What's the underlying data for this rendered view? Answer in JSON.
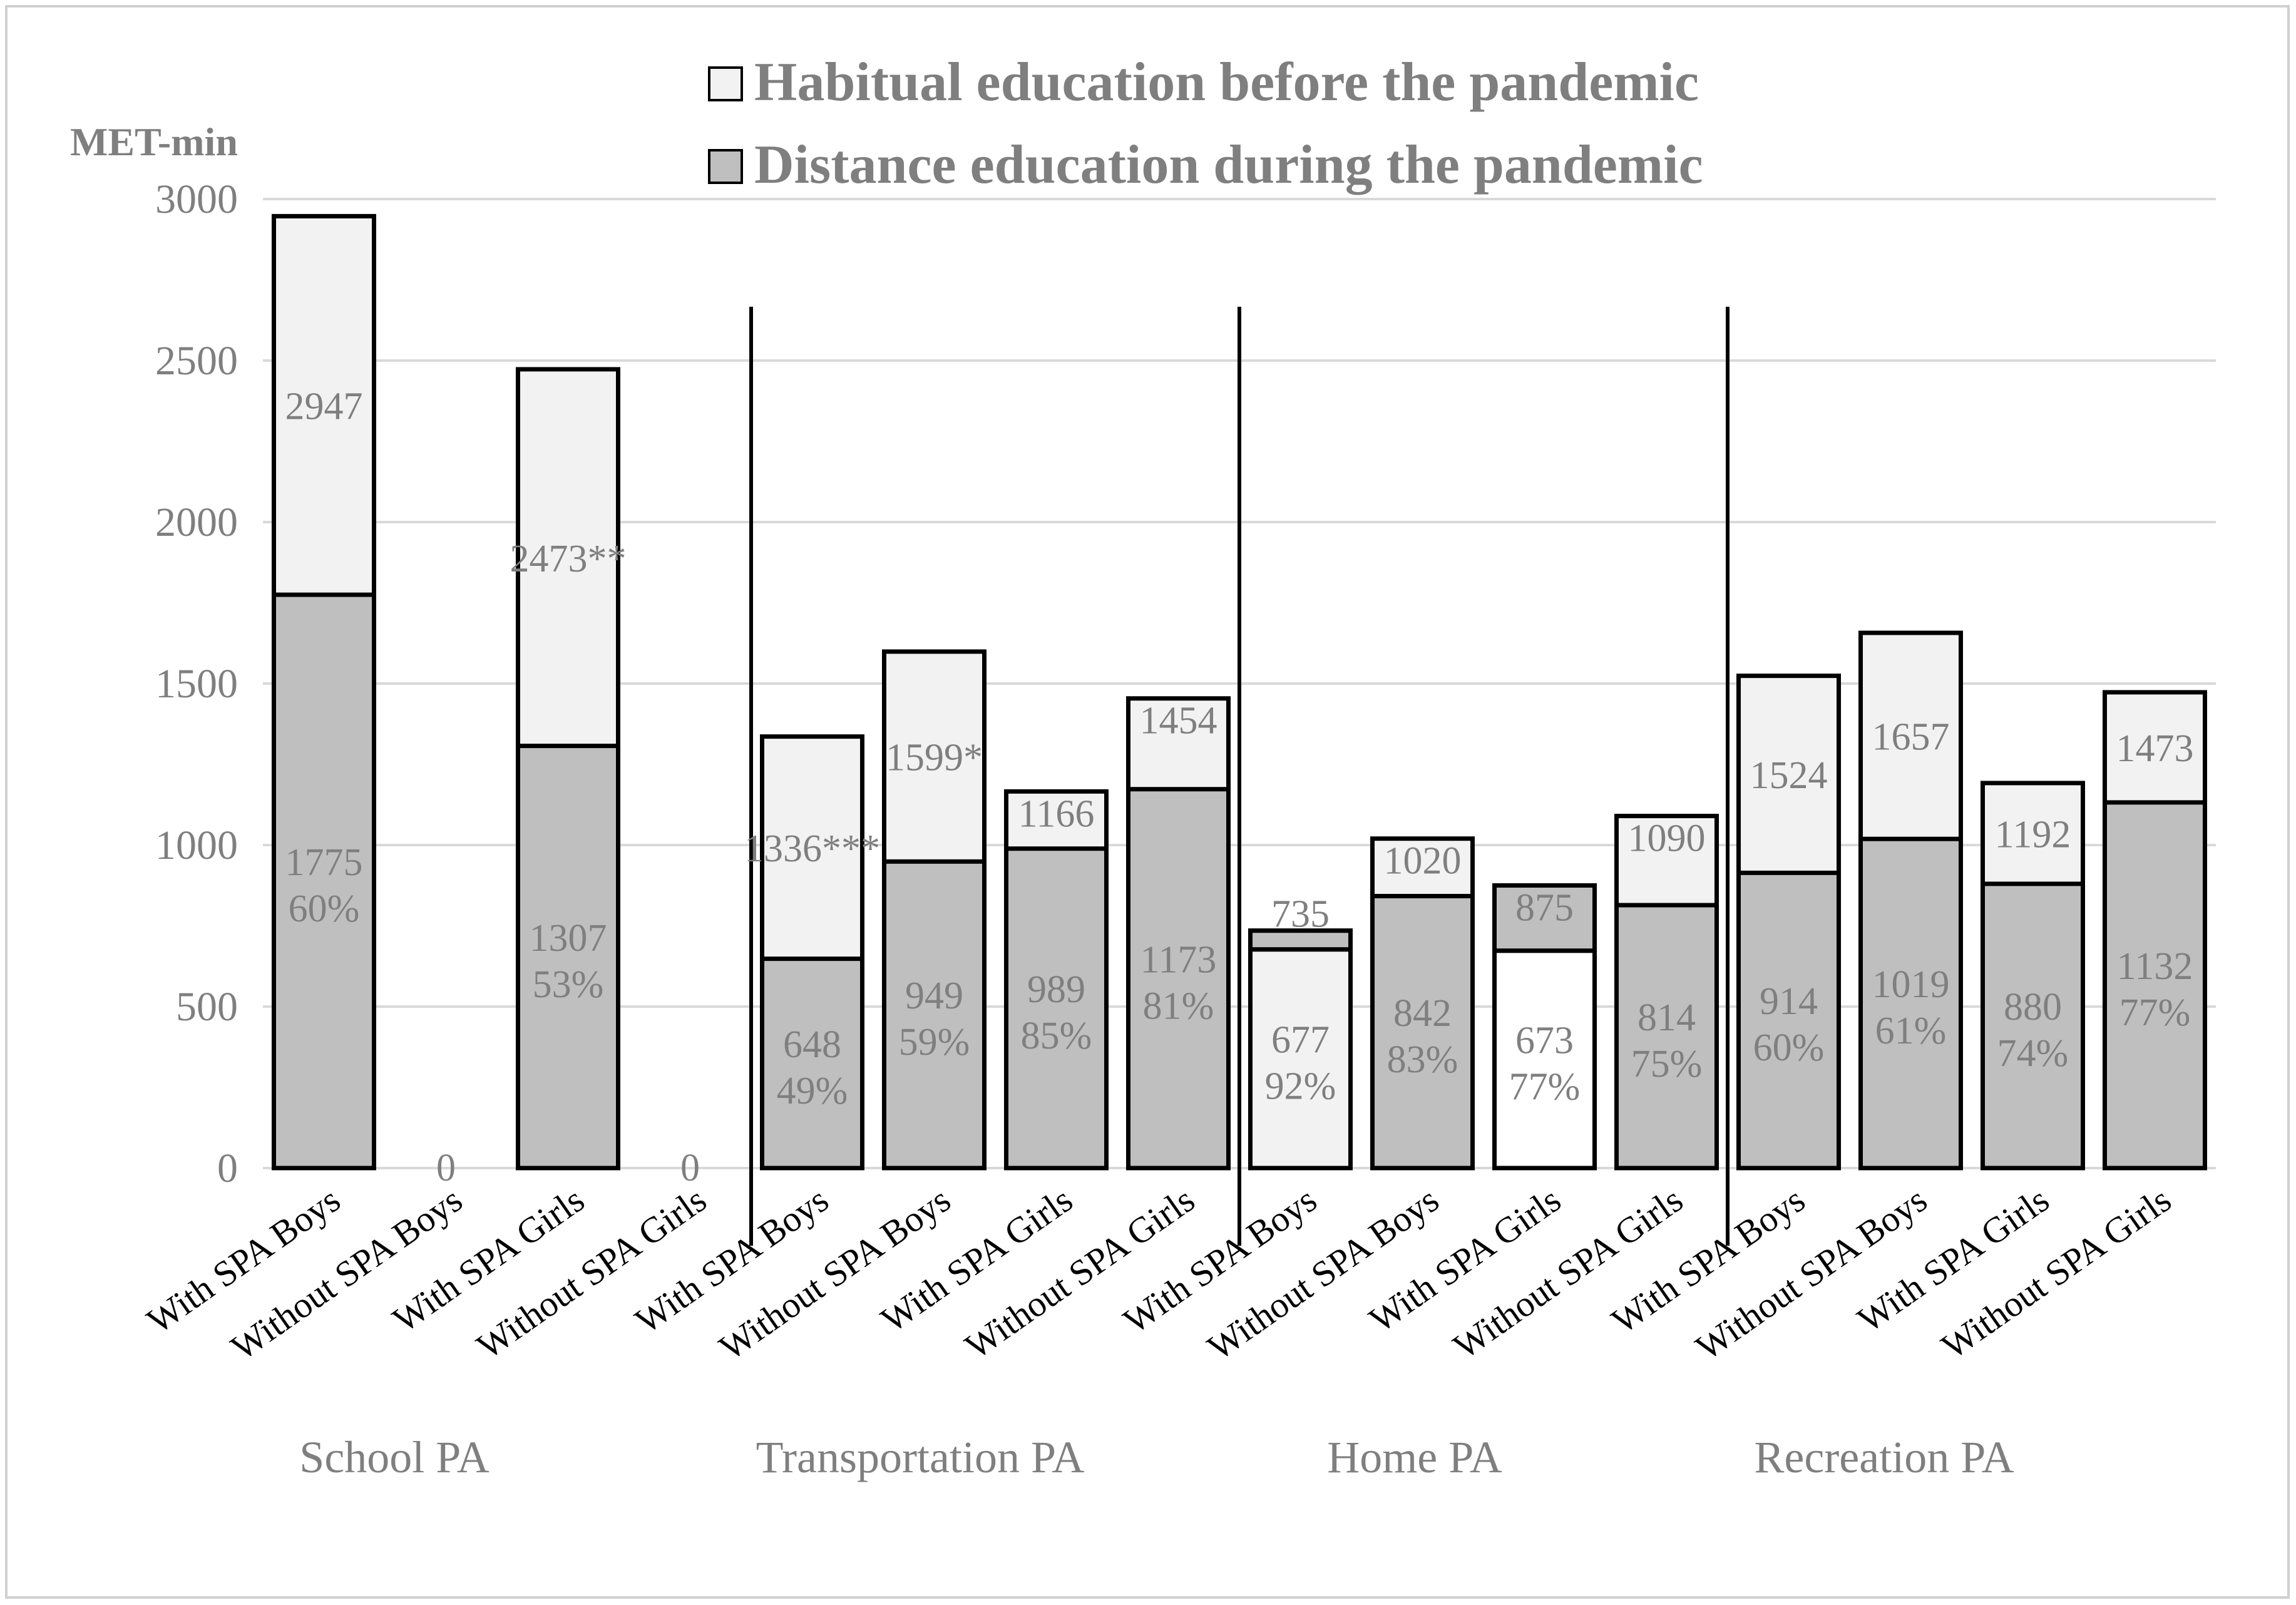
{
  "chart_data": {
    "type": "bar",
    "stacked_overlay": true,
    "ylabel": "MET-min",
    "ylim": [
      0,
      3000
    ],
    "yticks": [
      0,
      500,
      1000,
      1500,
      2000,
      2500,
      3000
    ],
    "grid": true,
    "legend": {
      "placement": "top-center",
      "entries": [
        "Habitual education before the pandemic",
        "Distance education during the pandemic"
      ]
    },
    "groups": [
      "School PA",
      "Transportation PA",
      "Home PA",
      "Recreation PA"
    ],
    "categories": [
      "With SPA Boys",
      "Without SPA Boys",
      "With SPA Girls",
      "Without SPA Girls",
      "With SPA Boys",
      "Without SPA Boys",
      "With SPA Girls",
      "Without SPA Girls",
      "With SPA Boys",
      "Without SPA Boys",
      "With SPA Girls",
      "Without SPA Girls",
      "With SPA Boys",
      "Without SPA Boys",
      "With SPA Girls",
      "Without SPA Girls"
    ],
    "series": [
      {
        "name": "Habitual education before the pandemic",
        "values": [
          2947,
          0,
          2473,
          0,
          1336,
          1599,
          1166,
          1454,
          735,
          1020,
          875,
          1090,
          1524,
          1657,
          1192,
          1473
        ],
        "labels": [
          "2947",
          "0",
          "2473**",
          "0",
          "1336***",
          "1599*",
          "1166",
          "1454",
          "735",
          "1020",
          "875",
          "1090",
          "1524",
          "1657",
          "1192",
          "1473"
        ]
      },
      {
        "name": "Distance education during the pandemic",
        "values": [
          1775,
          0,
          1307,
          0,
          648,
          949,
          989,
          1173,
          677,
          842,
          673,
          814,
          914,
          1019,
          880,
          1132
        ],
        "labels": [
          "1775",
          "",
          "1307",
          "",
          "648",
          "949",
          "989",
          "1173",
          "677",
          "842",
          "673",
          "814",
          "914",
          "1019",
          "880",
          "1132"
        ],
        "percent_labels": [
          "60%",
          "",
          "53%",
          "",
          "49%",
          "59%",
          "85%",
          "81%",
          "92%",
          "83%",
          "77%",
          "75%",
          "60%",
          "61%",
          "74%",
          "77%"
        ]
      }
    ]
  }
}
